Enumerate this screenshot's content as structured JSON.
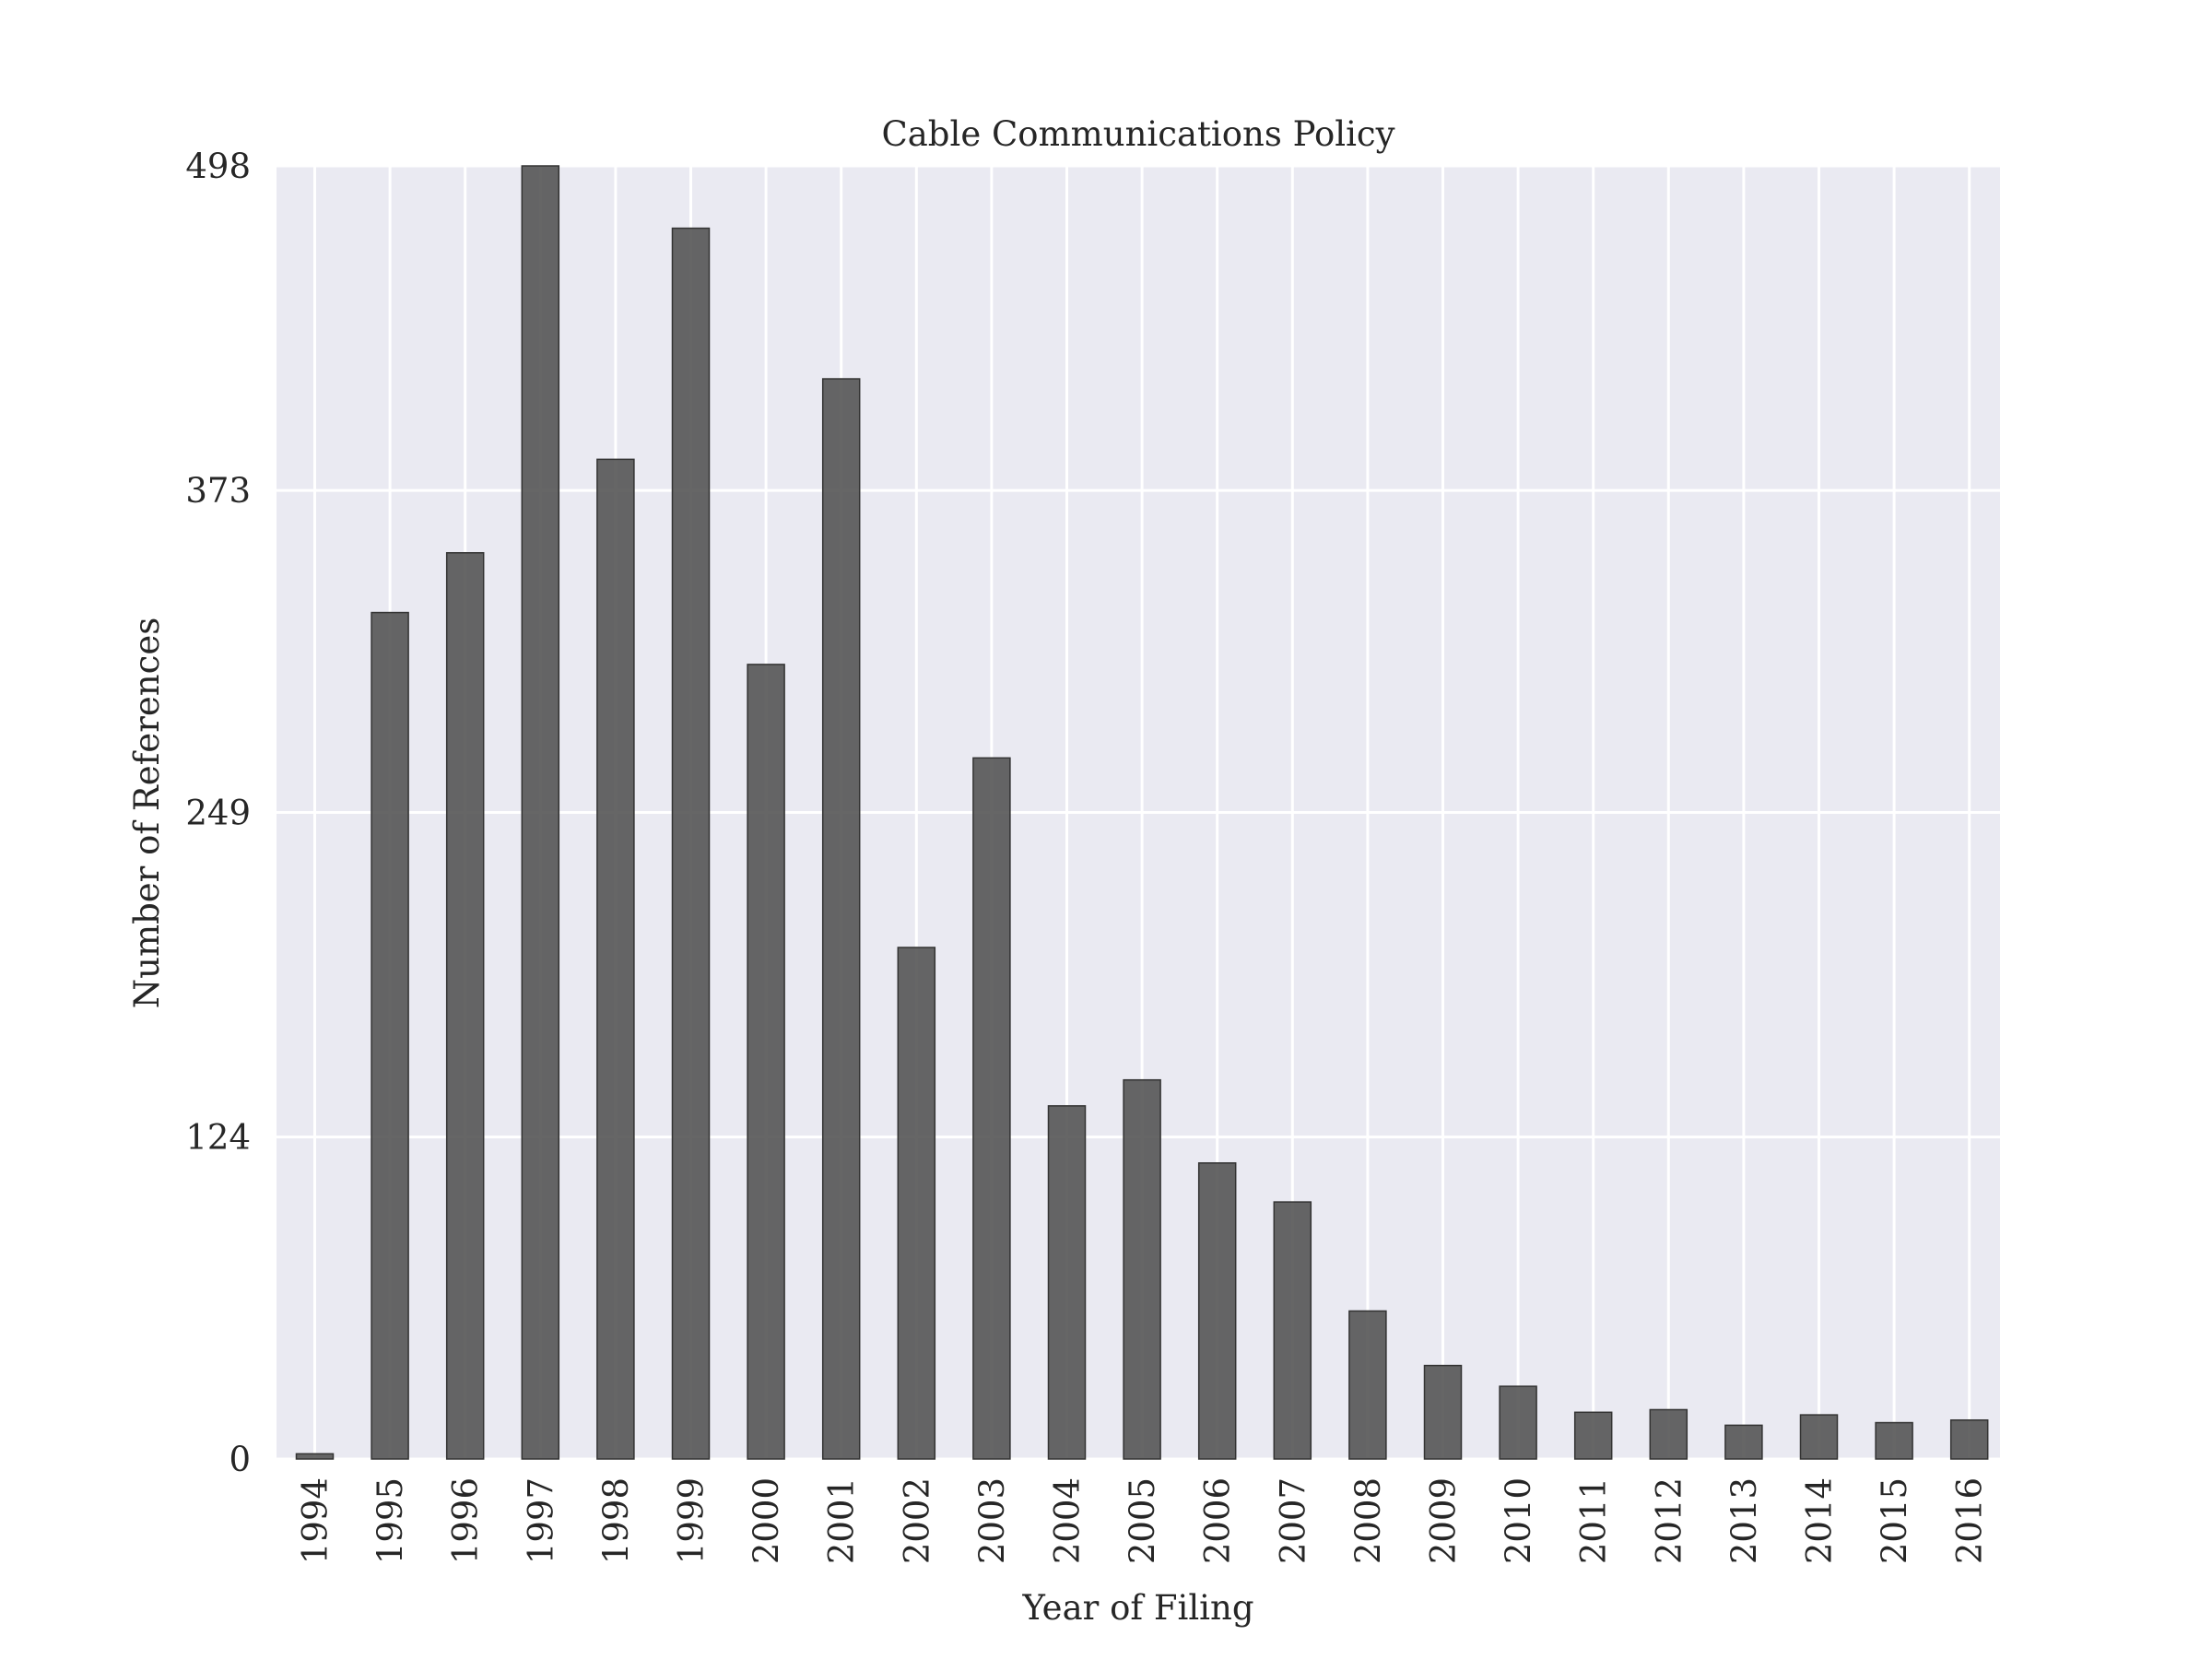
{
  "chart_data": {
    "type": "bar",
    "title": "Cable Communications Policy",
    "xlabel": "Year of Filing",
    "ylabel": "Number of References",
    "categories": [
      "1994",
      "1995",
      "1996",
      "1997",
      "1998",
      "1999",
      "2000",
      "2001",
      "2002",
      "2003",
      "2004",
      "2005",
      "2006",
      "2007",
      "2008",
      "2009",
      "2010",
      "2011",
      "2012",
      "2013",
      "2014",
      "2015",
      "2016"
    ],
    "values": [
      2,
      326,
      349,
      498,
      385,
      474,
      306,
      416,
      197,
      270,
      136,
      146,
      114,
      99,
      57,
      36,
      28,
      18,
      19,
      13,
      17,
      14,
      15
    ],
    "ylim": [
      0,
      498
    ],
    "yticks": [
      0,
      124,
      249,
      373,
      498
    ],
    "grid": true,
    "colors": {
      "bar": "#555555",
      "bar_edge": "#333333",
      "plot_background": "#eaeaf2",
      "grid": "#ffffff"
    }
  }
}
